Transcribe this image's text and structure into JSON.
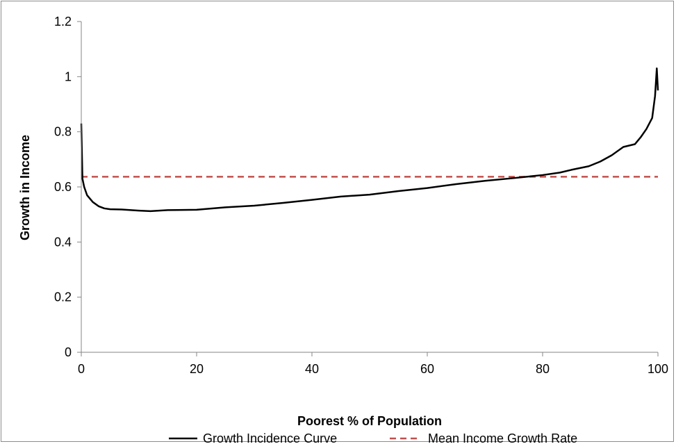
{
  "chart_data": {
    "type": "line",
    "xlabel": "Poorest % of Population",
    "ylabel": "Growth in Income",
    "xlim": [
      0,
      100
    ],
    "ylim": [
      0,
      1.2
    ],
    "x_ticks": [
      0,
      20,
      40,
      60,
      80,
      100
    ],
    "y_ticks": [
      0,
      0.2,
      0.4,
      0.6,
      0.8,
      1,
      1.2
    ],
    "x_tick_labels": [
      "0",
      "20",
      "40",
      "60",
      "80",
      "100"
    ],
    "y_tick_labels": [
      "0",
      "0.2",
      "0.4",
      "0.6",
      "0.8",
      "1",
      "1.2"
    ],
    "grid": false,
    "legend_position": "bottom",
    "series": [
      {
        "name": "Growth Incidence Curve",
        "color": "#000000",
        "style": "solid",
        "x": [
          0,
          0.2,
          0.5,
          1,
          2,
          3,
          4,
          5,
          7,
          10,
          12,
          15,
          20,
          25,
          30,
          35,
          40,
          45,
          50,
          55,
          60,
          65,
          70,
          75,
          80,
          83,
          85,
          88,
          90,
          92,
          94,
          96,
          97,
          98,
          99,
          99.5,
          99.8,
          100
        ],
        "y": [
          0.83,
          0.63,
          0.6,
          0.57,
          0.545,
          0.53,
          0.522,
          0.519,
          0.518,
          0.514,
          0.512,
          0.516,
          0.517,
          0.526,
          0.532,
          0.542,
          0.553,
          0.565,
          0.572,
          0.585,
          0.596,
          0.61,
          0.622,
          0.632,
          0.643,
          0.652,
          0.662,
          0.675,
          0.692,
          0.715,
          0.745,
          0.755,
          0.78,
          0.81,
          0.85,
          0.93,
          1.03,
          0.95
        ]
      },
      {
        "name": "Mean Income Growth Rate",
        "color": "#c0504d",
        "style": "dashed",
        "x": [
          0,
          100
        ],
        "y": [
          0.637,
          0.637
        ]
      }
    ]
  }
}
